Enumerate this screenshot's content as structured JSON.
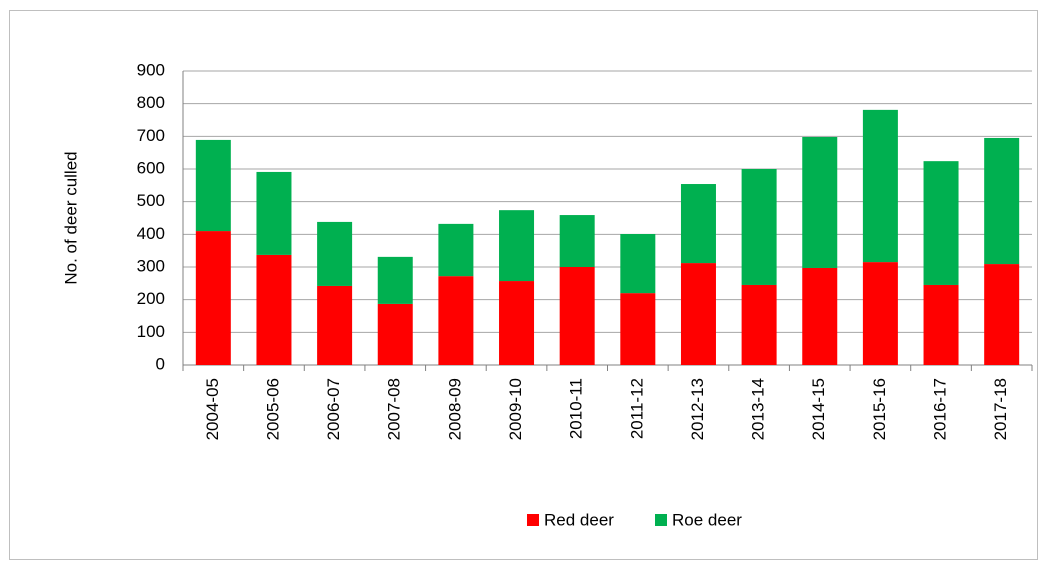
{
  "chart_data": {
    "type": "bar",
    "stacked": true,
    "y_label": "No. of deer culled",
    "categories": [
      "2004-05",
      "2005-06",
      "2006-07",
      "2007-08",
      "2008-09",
      "2009-10",
      "2010-11",
      "2011-12",
      "2012-13",
      "2013-14",
      "2014-15",
      "2015-16",
      "2016-17",
      "2017-18"
    ],
    "series": [
      {
        "name": "Red deer",
        "color": "#ff0000",
        "values": [
          410,
          337,
          242,
          187,
          272,
          257,
          300,
          220,
          312,
          245,
          297,
          315,
          245,
          309
        ]
      },
      {
        "name": "Roe deer",
        "color": "#00b050",
        "values": [
          279,
          254,
          196,
          144,
          160,
          217,
          159,
          181,
          242,
          355,
          401,
          466,
          379,
          386
        ]
      }
    ],
    "ylim": [
      0,
      900
    ],
    "yticks": [
      0,
      100,
      200,
      300,
      400,
      500,
      600,
      700,
      800,
      900
    ],
    "grid": true,
    "legend": "bottom"
  }
}
